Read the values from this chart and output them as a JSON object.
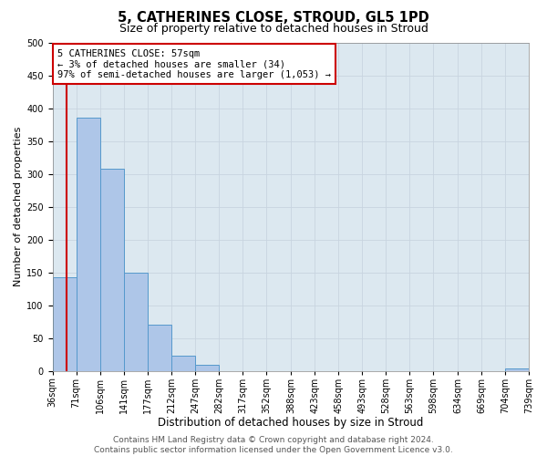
{
  "title": "5, CATHERINES CLOSE, STROUD, GL5 1PD",
  "subtitle": "Size of property relative to detached houses in Stroud",
  "xlabel": "Distribution of detached houses by size in Stroud",
  "ylabel": "Number of detached properties",
  "bin_edges": [
    36,
    71,
    106,
    141,
    177,
    212,
    247,
    282,
    317,
    352,
    388,
    423,
    458,
    493,
    528,
    563,
    598,
    634,
    669,
    704,
    739
  ],
  "bar_heights": [
    143,
    385,
    308,
    149,
    70,
    23,
    9,
    0,
    0,
    0,
    0,
    0,
    0,
    0,
    0,
    0,
    0,
    0,
    0,
    4
  ],
  "bar_color": "#aec6e8",
  "bar_edgecolor": "#5599cc",
  "tick_labels": [
    "36sqm",
    "71sqm",
    "106sqm",
    "141sqm",
    "177sqm",
    "212sqm",
    "247sqm",
    "282sqm",
    "317sqm",
    "352sqm",
    "388sqm",
    "423sqm",
    "458sqm",
    "493sqm",
    "528sqm",
    "563sqm",
    "598sqm",
    "634sqm",
    "669sqm",
    "704sqm",
    "739sqm"
  ],
  "ylim": [
    0,
    500
  ],
  "yticks": [
    0,
    50,
    100,
    150,
    200,
    250,
    300,
    350,
    400,
    450,
    500
  ],
  "vline_x": 57,
  "vline_color": "#cc0000",
  "annotation_lines": [
    "5 CATHERINES CLOSE: 57sqm",
    "← 3% of detached houses are smaller (34)",
    "97% of semi-detached houses are larger (1,053) →"
  ],
  "annotation_box_facecolor": "#ffffff",
  "annotation_box_edgecolor": "#cc0000",
  "grid_color": "#c8d4e0",
  "background_color": "#dce8f0",
  "footer_lines": [
    "Contains HM Land Registry data © Crown copyright and database right 2024.",
    "Contains public sector information licensed under the Open Government Licence v3.0."
  ],
  "title_fontsize": 10.5,
  "subtitle_fontsize": 9,
  "xlabel_fontsize": 8.5,
  "ylabel_fontsize": 8,
  "tick_fontsize": 7,
  "annot_fontsize": 7.5,
  "footer_fontsize": 6.5
}
